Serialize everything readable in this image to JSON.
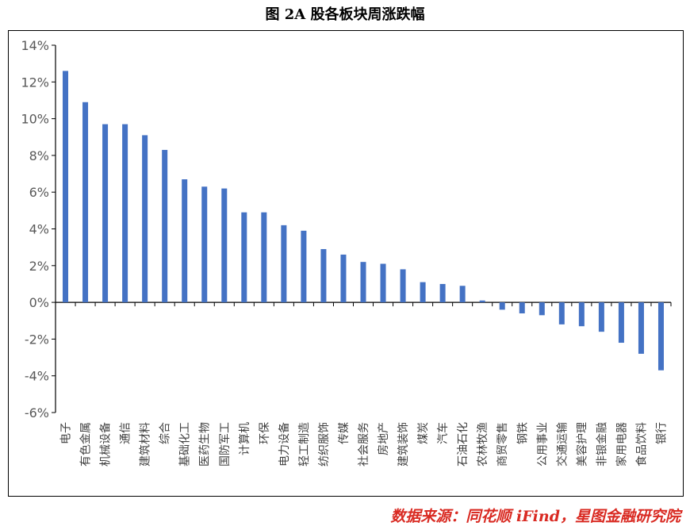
{
  "title": "图 2A 股各板块周涨跌幅",
  "source": "数据来源：同花顺 iFind，星图金融研究院",
  "colors": {
    "bar": "#4472c4",
    "axis": "#000000",
    "source": "#d92a22"
  },
  "chart_data": {
    "type": "bar",
    "title": "图 2A 股各板块周涨跌幅",
    "xlabel": "",
    "ylabel": "",
    "ylim": [
      -6,
      14
    ],
    "y_ticks": [
      -6,
      -4,
      -2,
      0,
      2,
      4,
      6,
      8,
      10,
      12,
      14
    ],
    "y_tick_format": "percent",
    "grid": false,
    "legend": "none",
    "categories": [
      "电子",
      "有色金属",
      "机械设备",
      "通信",
      "建筑材料",
      "综合",
      "基础化工",
      "医药生物",
      "国防军工",
      "计算机",
      "环保",
      "电力设备",
      "轻工制造",
      "纺织服饰",
      "传媒",
      "社会服务",
      "房地产",
      "建筑装饰",
      "煤炭",
      "汽车",
      "石油石化",
      "农林牧渔",
      "商贸零售",
      "钢铁",
      "公用事业",
      "交通运输",
      "美容护理",
      "非银金融",
      "家用电器",
      "食品饮料",
      "银行"
    ],
    "values": [
      12.6,
      10.9,
      9.7,
      9.7,
      9.1,
      8.3,
      6.7,
      6.3,
      6.2,
      4.9,
      4.9,
      4.2,
      3.9,
      2.9,
      2.6,
      2.2,
      2.1,
      1.8,
      1.1,
      1.0,
      0.9,
      0.1,
      -0.4,
      -0.6,
      -0.7,
      -1.2,
      -1.3,
      -1.6,
      -2.2,
      -2.8,
      -3.7
    ]
  }
}
